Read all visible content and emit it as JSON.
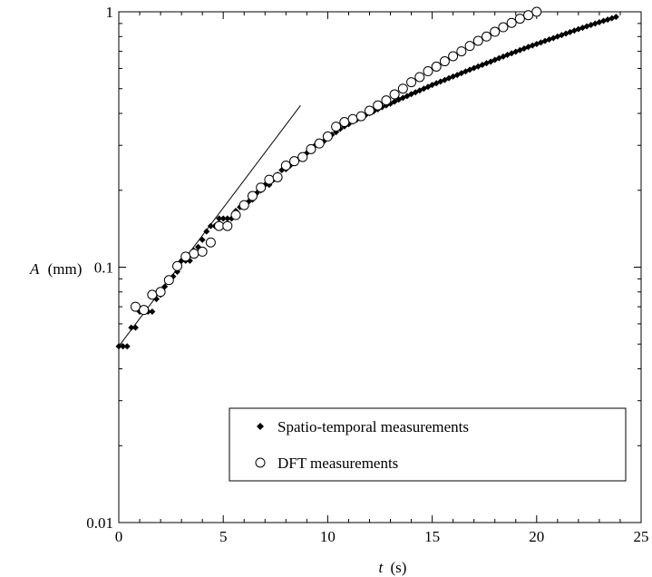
{
  "chart_data": {
    "type": "scatter",
    "xlabel_var": "t",
    "xlabel_unit": "(s)",
    "ylabel_var": "A",
    "ylabel_unit": "(mm)",
    "x_ticks": [
      "0",
      "5",
      "10",
      "15",
      "20",
      "25"
    ],
    "y_ticks": [
      "0.01",
      "0.1",
      "1"
    ],
    "xlim": [
      0,
      25
    ],
    "ylim": [
      0.01,
      1
    ],
    "y_scale": "log",
    "legend": {
      "placement": "lower-right",
      "entries": [
        "Spatio-temporal measurements",
        "DFT measurements"
      ]
    },
    "series": [
      {
        "name": "Spatio-temporal measurements",
        "marker": "filled-diamond",
        "x": [
          0.0,
          0.2,
          0.4,
          0.6,
          0.8,
          1.0,
          1.2,
          1.4,
          1.6,
          1.8,
          2.0,
          2.2,
          2.4,
          2.6,
          2.8,
          3.0,
          3.2,
          3.4,
          3.6,
          3.8,
          4.0,
          4.2,
          4.4,
          4.6,
          4.8,
          5.0,
          5.2,
          5.4,
          5.6,
          5.8,
          6.0,
          6.2,
          6.4,
          6.6,
          6.8,
          7.0,
          7.2,
          7.4,
          7.6,
          7.8,
          8.0,
          8.2,
          8.4,
          8.6,
          8.8,
          9.0,
          9.2,
          9.4,
          9.6,
          9.8,
          10.0,
          10.2,
          10.4,
          10.6,
          10.8,
          11.0,
          11.2,
          11.4,
          11.6,
          11.8,
          12.0,
          12.2,
          12.4,
          12.6,
          12.8,
          13.0,
          13.2,
          13.4,
          13.6,
          13.8,
          14.0,
          14.2,
          14.4,
          14.6,
          14.8,
          15.0,
          15.2,
          15.4,
          15.6,
          15.8,
          16.0,
          16.2,
          16.4,
          16.6,
          16.8,
          17.0,
          17.2,
          17.4,
          17.6,
          17.8,
          18.0,
          18.2,
          18.4,
          18.6,
          18.8,
          19.0,
          19.2,
          19.4,
          19.6,
          19.8,
          20.0,
          20.2,
          20.4,
          20.6,
          20.8,
          21.0,
          21.2,
          21.4,
          21.6,
          21.8,
          22.0,
          22.2,
          22.4,
          22.6,
          22.8,
          23.0,
          23.2,
          23.4,
          23.6,
          23.8
        ],
        "y": [
          0.049,
          0.049,
          0.049,
          0.058,
          0.058,
          0.067,
          0.067,
          0.067,
          0.067,
          0.075,
          0.078,
          0.084,
          0.088,
          0.092,
          0.096,
          0.106,
          0.106,
          0.106,
          0.116,
          0.12,
          0.128,
          0.138,
          0.145,
          0.145,
          0.155,
          0.155,
          0.155,
          0.155,
          0.166,
          0.172,
          0.172,
          0.18,
          0.184,
          0.195,
          0.2,
          0.21,
          0.21,
          0.22,
          0.23,
          0.24,
          0.242,
          0.25,
          0.262,
          0.265,
          0.27,
          0.28,
          0.285,
          0.3,
          0.305,
          0.31,
          0.322,
          0.33,
          0.338,
          0.348,
          0.356,
          0.363,
          0.372,
          0.379,
          0.386,
          0.393,
          0.401,
          0.408,
          0.415,
          0.423,
          0.43,
          0.437,
          0.445,
          0.453,
          0.46,
          0.468,
          0.476,
          0.484,
          0.492,
          0.5,
          0.508,
          0.517,
          0.525,
          0.533,
          0.541,
          0.55,
          0.558,
          0.566,
          0.575,
          0.584,
          0.593,
          0.602,
          0.611,
          0.62,
          0.629,
          0.638,
          0.648,
          0.658,
          0.668,
          0.678,
          0.688,
          0.698,
          0.708,
          0.718,
          0.728,
          0.738,
          0.748,
          0.758,
          0.769,
          0.779,
          0.789,
          0.8,
          0.811,
          0.822,
          0.833,
          0.844,
          0.855,
          0.866,
          0.877,
          0.888,
          0.899,
          0.91,
          0.921,
          0.932,
          0.943,
          0.955
        ]
      },
      {
        "name": "DFT measurements",
        "marker": "open-circle",
        "x": [
          0.8,
          1.2,
          1.6,
          2.0,
          2.4,
          2.8,
          3.2,
          3.6,
          4.0,
          4.4,
          4.8,
          5.2,
          5.6,
          6.0,
          6.4,
          6.8,
          7.2,
          7.6,
          8.0,
          8.4,
          8.8,
          9.2,
          9.6,
          10.0,
          10.4,
          10.8,
          11.2,
          11.6,
          12.0,
          12.4,
          12.8,
          13.2,
          13.6,
          14.0,
          14.4,
          14.8,
          15.2,
          15.6,
          16.0,
          16.4,
          16.8,
          17.2,
          17.6,
          18.0,
          18.4,
          18.8,
          19.2,
          19.6,
          20.0
        ],
        "y": [
          0.07,
          0.068,
          0.078,
          0.08,
          0.089,
          0.101,
          0.11,
          0.113,
          0.115,
          0.125,
          0.145,
          0.145,
          0.16,
          0.175,
          0.19,
          0.205,
          0.22,
          0.225,
          0.25,
          0.26,
          0.27,
          0.29,
          0.305,
          0.325,
          0.355,
          0.37,
          0.38,
          0.39,
          0.41,
          0.43,
          0.45,
          0.475,
          0.5,
          0.53,
          0.555,
          0.585,
          0.61,
          0.64,
          0.67,
          0.7,
          0.735,
          0.77,
          0.8,
          0.835,
          0.87,
          0.905,
          0.94,
          0.97,
          1.0
        ]
      }
    ],
    "fit_line": {
      "x": [
        0.0,
        8.7
      ],
      "y": [
        0.049,
        0.43
      ]
    }
  }
}
